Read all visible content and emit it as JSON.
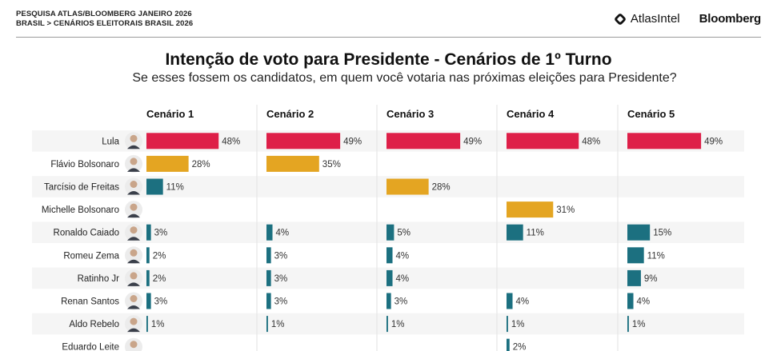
{
  "header": {
    "breadcrumb_line1": "PESQUISA ATLAS/BLOOMBERG JANEIRO 2026",
    "breadcrumb_line2": "BRASIL > CENÁRIOS ELEITORAIS BRASIL 2026",
    "logo_atlas": "AtlasIntel",
    "logo_bloomberg": "Bloomberg"
  },
  "title": "Intenção de voto para Presidente - Cenários de 1º Turno",
  "subtitle": "Se esses fossem os candidatos, em quem você votaria nas próximas eleições para Presidente?",
  "colors": {
    "lula": "#de1f48",
    "bolsonaro_family_or_main_right": "#e4a522",
    "others": "#1c7080",
    "row_alt_bg": "#f5f5f5",
    "divider": "#e2e2e2"
  },
  "chart_data": {
    "type": "bar",
    "title": "Intenção de voto para Presidente - Cenários de 1º Turno",
    "subtitle": "Se esses fossem os candidatos, em quem você votaria nas próximas eleições para Presidente?",
    "unit": "%",
    "categories": [
      "Lula",
      "Flávio Bolsonaro",
      "Tarcísio de Freitas",
      "Michelle Bolsonaro",
      "Ronaldo Caiado",
      "Romeu Zema",
      "Ratinho Jr",
      "Renan Santos",
      "Aldo Rebelo",
      "Eduardo Leite"
    ],
    "series": [
      {
        "name": "Cenário 1",
        "values": [
          48,
          28,
          11,
          null,
          3,
          2,
          2,
          3,
          1,
          null
        ],
        "colors": [
          "lula",
          "right",
          "other",
          null,
          "other",
          "other",
          "other",
          "other",
          "other",
          null
        ]
      },
      {
        "name": "Cenário 2",
        "values": [
          49,
          35,
          null,
          null,
          4,
          3,
          3,
          3,
          1,
          null
        ],
        "colors": [
          "lula",
          "right",
          null,
          null,
          "other",
          "other",
          "other",
          "other",
          "other",
          null
        ]
      },
      {
        "name": "Cenário 3",
        "values": [
          49,
          null,
          28,
          null,
          5,
          4,
          4,
          3,
          1,
          null
        ],
        "colors": [
          "lula",
          null,
          "right",
          null,
          "other",
          "other",
          "other",
          "other",
          "other",
          null
        ]
      },
      {
        "name": "Cenário 4",
        "values": [
          48,
          null,
          null,
          31,
          11,
          null,
          null,
          4,
          1,
          2
        ],
        "colors": [
          "lula",
          null,
          null,
          "right",
          "other",
          null,
          null,
          "other",
          "other",
          "other"
        ]
      },
      {
        "name": "Cenário 5",
        "values": [
          49,
          null,
          null,
          null,
          15,
          11,
          9,
          4,
          1,
          null
        ],
        "colors": [
          "lula",
          null,
          null,
          null,
          "other",
          "other",
          "other",
          "other",
          "other",
          null
        ]
      }
    ],
    "xlim": [
      0,
      100
    ],
    "grid": false,
    "legend": "none"
  }
}
